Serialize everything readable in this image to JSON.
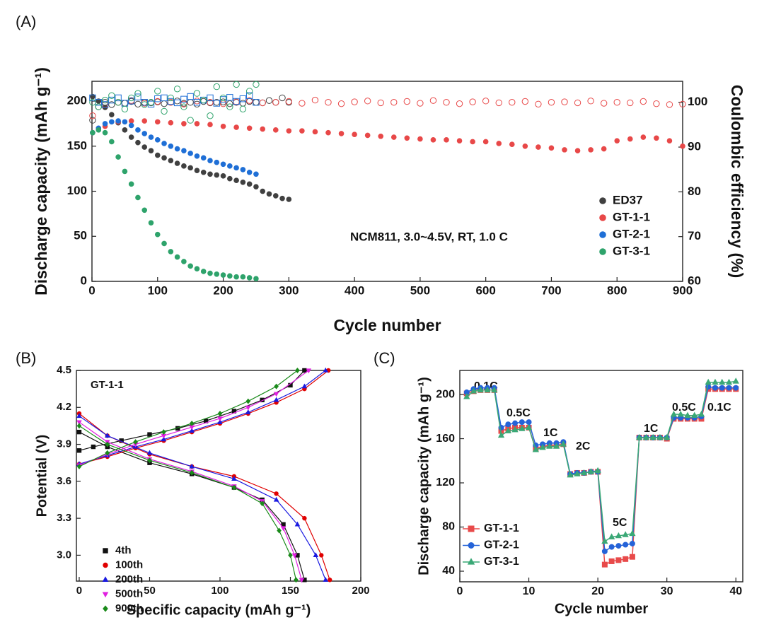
{
  "chart_data": [
    {
      "type": "scatter",
      "label": "(A)",
      "x_label": "Cycle number",
      "y_label": "Discharge  capacity (mAh g⁻¹)",
      "y2_label": "Coulombic efficiency (%)",
      "annotation": "NCM811, 3.0~4.5V, RT, 1.0 C",
      "xlim": [
        0,
        900
      ],
      "xticks": [
        0,
        100,
        200,
        300,
        400,
        500,
        600,
        700,
        800,
        900
      ],
      "ylim": [
        0,
        222
      ],
      "yticks": [
        0,
        50,
        100,
        150,
        200
      ],
      "y2lim": [
        60,
        104.7
      ],
      "y2ticks": [
        60,
        70,
        80,
        90,
        100
      ],
      "series": [
        {
          "name": "ED37",
          "color": "#404040",
          "marker": "circle",
          "x": [
            1,
            10,
            20,
            30,
            40,
            50,
            60,
            70,
            80,
            90,
            100,
            110,
            120,
            130,
            140,
            150,
            160,
            170,
            180,
            190,
            200,
            210,
            220,
            230,
            240,
            250,
            260,
            270,
            280,
            290,
            300
          ],
          "values": [
            205,
            200,
            193,
            185,
            176,
            168,
            160,
            154,
            149,
            145,
            140,
            137,
            134,
            131,
            128,
            126,
            123,
            121,
            119,
            118,
            117,
            114,
            112,
            110,
            108,
            105,
            100,
            97,
            95,
            92,
            91
          ],
          "ce_values": [
            96,
            99,
            100,
            99.5,
            100,
            99.8,
            100.2,
            99.6,
            100,
            99.9,
            100.1,
            99.7,
            100,
            100.3,
            99.8,
            100,
            99.6,
            100.2,
            99.9,
            100,
            100.1,
            99.7,
            100,
            99.8,
            100.2,
            100,
            99.9,
            100.4,
            100,
            101,
            100
          ]
        },
        {
          "name": "GT-1-1",
          "color": "#e84848",
          "marker": "circle",
          "x": [
            1,
            20,
            40,
            60,
            80,
            100,
            120,
            140,
            160,
            180,
            200,
            220,
            240,
            260,
            280,
            300,
            320,
            340,
            360,
            380,
            400,
            420,
            440,
            460,
            480,
            500,
            520,
            540,
            560,
            580,
            600,
            620,
            640,
            660,
            680,
            700,
            720,
            740,
            760,
            780,
            800,
            820,
            840,
            860,
            880,
            900
          ],
          "values": [
            165,
            172,
            177,
            178,
            178,
            177,
            176,
            175,
            175,
            174,
            172,
            171,
            170,
            169,
            168,
            167,
            167,
            166,
            165,
            164,
            163,
            162,
            161,
            160,
            159,
            158,
            157,
            157,
            156,
            155,
            155,
            153,
            152,
            150,
            149,
            148,
            146,
            145,
            146,
            147,
            156,
            158,
            160,
            159,
            156,
            150
          ],
          "ce_values": [
            97,
            99.5,
            100,
            100.4,
            99.8,
            100.2,
            100,
            99.6,
            100.3,
            100,
            99.7,
            100.1,
            100.4,
            99.9,
            100,
            100.2,
            99.8,
            100.5,
            100,
            99.7,
            100.1,
            100.3,
            99.9,
            100,
            100.2,
            99.8,
            100.4,
            100,
            99.7,
            100.1,
            100.3,
            99.9,
            100,
            100.2,
            99.6,
            100,
            100.1,
            99.9,
            100.3,
            99.8,
            100,
            99.9,
            100.2,
            99.7,
            99.5,
            99.6
          ]
        },
        {
          "name": "GT-2-1",
          "color": "#1f6fd6",
          "marker": "square",
          "x": [
            1,
            10,
            20,
            30,
            40,
            50,
            60,
            70,
            80,
            90,
            100,
            110,
            120,
            130,
            140,
            150,
            160,
            170,
            180,
            190,
            200,
            210,
            220,
            230,
            240,
            250
          ],
          "values": [
            165,
            170,
            175,
            177,
            178,
            177,
            173,
            168,
            164,
            160,
            157,
            153,
            150,
            147,
            145,
            142,
            139,
            137,
            134,
            132,
            130,
            128,
            126,
            124,
            121,
            119
          ],
          "ce_values": [
            101,
            100,
            99.5,
            100.5,
            101,
            99.8,
            100.3,
            101.2,
            100,
            99.6,
            100.8,
            101,
            100.2,
            99.9,
            100.7,
            101.3,
            100,
            100.5,
            101,
            99.8,
            100.6,
            101.1,
            100.2,
            100.8,
            101.5,
            100
          ]
        },
        {
          "name": "GT-3-1",
          "color": "#2ea36b",
          "marker": "circle",
          "x": [
            1,
            10,
            20,
            30,
            40,
            50,
            60,
            70,
            80,
            90,
            100,
            110,
            120,
            130,
            140,
            150,
            160,
            170,
            180,
            190,
            200,
            210,
            220,
            230,
            240,
            250
          ],
          "values": [
            165,
            168,
            165,
            155,
            138,
            122,
            108,
            93,
            79,
            65,
            52,
            42,
            33,
            27,
            22,
            17,
            14,
            11,
            9,
            8,
            7,
            6,
            5,
            5,
            4,
            3
          ],
          "ce_values": [
            100,
            99,
            100.5,
            101.5,
            100,
            98.5,
            101,
            102,
            99.5,
            100,
            102.5,
            98,
            101,
            103,
            99,
            96,
            102,
            100.5,
            97,
            103.5,
            101,
            99,
            104,
            98.5,
            102.5,
            104
          ]
        }
      ]
    },
    {
      "type": "line",
      "label": "(B)",
      "x_label": "Specific capacity (mAh g⁻¹)",
      "y_label": "Potential (V)",
      "annotation": "GT-1-1",
      "xlim": [
        -2,
        200
      ],
      "xticks": [
        0,
        50,
        100,
        150,
        200
      ],
      "ylim": [
        2.79,
        4.5
      ],
      "yticks": [
        {
          "value": 3,
          "label": "3.0"
        },
        3.3,
        3.6,
        3.9,
        4.2,
        4.5
      ],
      "series": [
        {
          "name": "4th",
          "color": "#111111",
          "marker": "square",
          "x": [
            0,
            10,
            30,
            50,
            70,
            90,
            110,
            130,
            150,
            160
          ],
          "values": [
            3.85,
            3.88,
            3.93,
            3.98,
            4.03,
            4.09,
            4.17,
            4.26,
            4.38,
            4.5
          ],
          "discharge_x": [
            0,
            20,
            50,
            80,
            110,
            130,
            145,
            155,
            160
          ],
          "discharge_values": [
            4.0,
            3.88,
            3.75,
            3.66,
            3.55,
            3.45,
            3.25,
            3.0,
            2.8
          ]
        },
        {
          "name": "100th",
          "color": "#e00000",
          "marker": "circle",
          "x": [
            0,
            20,
            40,
            60,
            80,
            100,
            120,
            140,
            160,
            177
          ],
          "values": [
            3.74,
            3.8,
            3.87,
            3.93,
            4.0,
            4.07,
            4.15,
            4.24,
            4.35,
            4.5
          ],
          "discharge_x": [
            0,
            20,
            50,
            80,
            110,
            140,
            160,
            172,
            178
          ],
          "discharge_values": [
            4.15,
            3.97,
            3.82,
            3.72,
            3.64,
            3.5,
            3.3,
            3.0,
            2.8
          ]
        },
        {
          "name": "200th",
          "color": "#1a1ae0",
          "marker": "triangle",
          "x": [
            0,
            20,
            40,
            60,
            80,
            100,
            120,
            140,
            160,
            175
          ],
          "values": [
            3.74,
            3.81,
            3.88,
            3.94,
            4.01,
            4.08,
            4.16,
            4.26,
            4.37,
            4.5
          ],
          "discharge_x": [
            0,
            20,
            50,
            80,
            110,
            140,
            155,
            168,
            175
          ],
          "discharge_values": [
            4.13,
            3.97,
            3.83,
            3.72,
            3.62,
            3.45,
            3.25,
            3.0,
            2.8
          ]
        },
        {
          "name": "500th",
          "color": "#e020e0",
          "marker": "tri-down",
          "x": [
            0,
            20,
            40,
            60,
            80,
            100,
            120,
            140,
            163
          ],
          "values": [
            3.73,
            3.82,
            3.9,
            3.97,
            4.04,
            4.11,
            4.2,
            4.31,
            4.5
          ],
          "discharge_x": [
            0,
            20,
            50,
            80,
            110,
            130,
            145,
            153,
            158
          ],
          "discharge_values": [
            4.08,
            3.92,
            3.78,
            3.68,
            3.56,
            3.44,
            3.22,
            3.0,
            2.8
          ]
        },
        {
          "name": "900th",
          "color": "#1a8a1a",
          "marker": "diamond",
          "x": [
            0,
            20,
            40,
            60,
            80,
            100,
            120,
            140,
            155
          ],
          "values": [
            3.72,
            3.83,
            3.92,
            4.0,
            4.07,
            4.15,
            4.25,
            4.37,
            4.5
          ],
          "discharge_x": [
            0,
            20,
            50,
            80,
            110,
            130,
            142,
            150,
            154
          ],
          "discharge_values": [
            4.05,
            3.9,
            3.77,
            3.67,
            3.55,
            3.42,
            3.2,
            3.0,
            2.8
          ]
        }
      ]
    },
    {
      "type": "line",
      "label": "(C)",
      "x_label": "Cycle number",
      "y_label": "Discharge capacity (mAh g⁻¹)",
      "annotations": [
        "0.1C",
        "0.5C",
        "1C",
        "2C",
        "5C",
        "1C",
        "0.5C",
        "0.1C"
      ],
      "xlim": [
        0,
        41
      ],
      "xticks": [
        0,
        10,
        20,
        30,
        40
      ],
      "ylim": [
        30.4,
        221.8
      ],
      "yticks": [
        40,
        80,
        120,
        160,
        200
      ],
      "x": [
        1,
        2,
        3,
        4,
        5,
        6,
        7,
        8,
        9,
        10,
        11,
        12,
        13,
        14,
        15,
        16,
        17,
        18,
        19,
        20,
        21,
        22,
        23,
        24,
        25,
        26,
        27,
        28,
        29,
        30,
        31,
        32,
        33,
        34,
        35,
        36,
        37,
        38,
        39,
        40
      ],
      "series": [
        {
          "name": "GT-1-1",
          "color": "#e84a4a",
          "marker": "square",
          "values": [
            201,
            203,
            204,
            204,
            204,
            167,
            169,
            170,
            170,
            170,
            151,
            153,
            154,
            154,
            155,
            128,
            129,
            129,
            130,
            130,
            46,
            49,
            50,
            51,
            53,
            161,
            161,
            161,
            161,
            160,
            178,
            178,
            178,
            178,
            178,
            205,
            205,
            205,
            205,
            205
          ]
        },
        {
          "name": "GT-2-1",
          "color": "#2563d8",
          "marker": "circle",
          "values": [
            202,
            205,
            206,
            206,
            206,
            170,
            173,
            174,
            175,
            175,
            154,
            155,
            156,
            156,
            157,
            128,
            129,
            129,
            130,
            130,
            58,
            62,
            63,
            64,
            65,
            161,
            161,
            161,
            161,
            161,
            179,
            179,
            179,
            179,
            180,
            207,
            206,
            206,
            206,
            206
          ]
        },
        {
          "name": "GT-3-1",
          "color": "#3aa876",
          "marker": "triangle",
          "values": [
            198,
            203,
            204,
            204,
            204,
            163,
            167,
            168,
            169,
            170,
            150,
            152,
            153,
            153,
            155,
            127,
            128,
            129,
            130,
            131,
            67,
            71,
            72,
            73,
            74,
            161,
            161,
            161,
            161,
            161,
            182,
            182,
            181,
            181,
            182,
            211,
            211,
            211,
            211,
            212
          ]
        }
      ]
    }
  ]
}
